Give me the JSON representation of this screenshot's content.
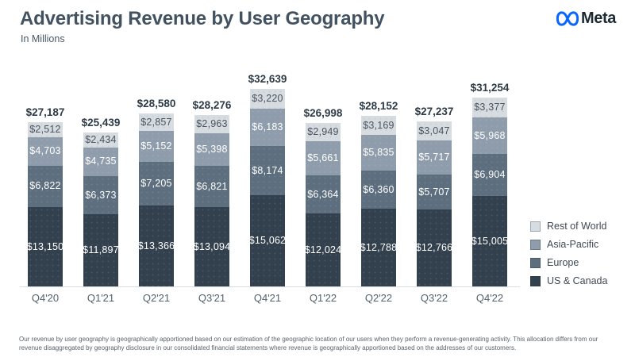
{
  "brand": {
    "wordmark": "Meta",
    "infinity_color": "#0866FF",
    "wordmark_color": "#1C2B33"
  },
  "chart_data": {
    "type": "bar",
    "stacked": true,
    "title": "Advertising Revenue by User Geography",
    "subtitle": "In Millions",
    "value_prefix": "$",
    "grid": false,
    "y_axis_visible": false,
    "legend_position": "right",
    "categories": [
      "Q4'20",
      "Q1'21",
      "Q2'21",
      "Q3'21",
      "Q4'21",
      "Q1'22",
      "Q2'22",
      "Q3'22",
      "Q4'22"
    ],
    "series": [
      {
        "name": "US & Canada",
        "color": "#33414E",
        "label_color": "#FFFFFF",
        "values": [
          13150,
          11897,
          13366,
          13094,
          15062,
          12024,
          12788,
          12766,
          15005
        ]
      },
      {
        "name": "Europe",
        "color": "#5D6E7E",
        "label_color": "#FFFFFF",
        "values": [
          6822,
          6373,
          7205,
          6821,
          8174,
          6364,
          6360,
          5707,
          6904
        ]
      },
      {
        "name": "Asia-Pacific",
        "color": "#8E9CAB",
        "label_color": "#FFFFFF",
        "values": [
          4703,
          4735,
          5152,
          5398,
          6183,
          5661,
          5835,
          5717,
          5968
        ]
      },
      {
        "name": "Rest of World",
        "color": "#D7DCE1",
        "label_color": "#4A545E",
        "values": [
          2512,
          2434,
          2857,
          2963,
          3220,
          2949,
          3169,
          3047,
          3377
        ]
      }
    ],
    "totals": [
      27187,
      25439,
      28580,
      28276,
      32639,
      26998,
      28152,
      27237,
      31254
    ]
  },
  "footnote": "Our revenue by user geography is geographically apportioned based on our estimation of the geographic location of our users when they perform a revenue-generating activity. This allocation differs from our revenue disaggregated by geography disclosure in our consolidated financial statements where revenue is geographically apportioned based on the addresses of our customers."
}
